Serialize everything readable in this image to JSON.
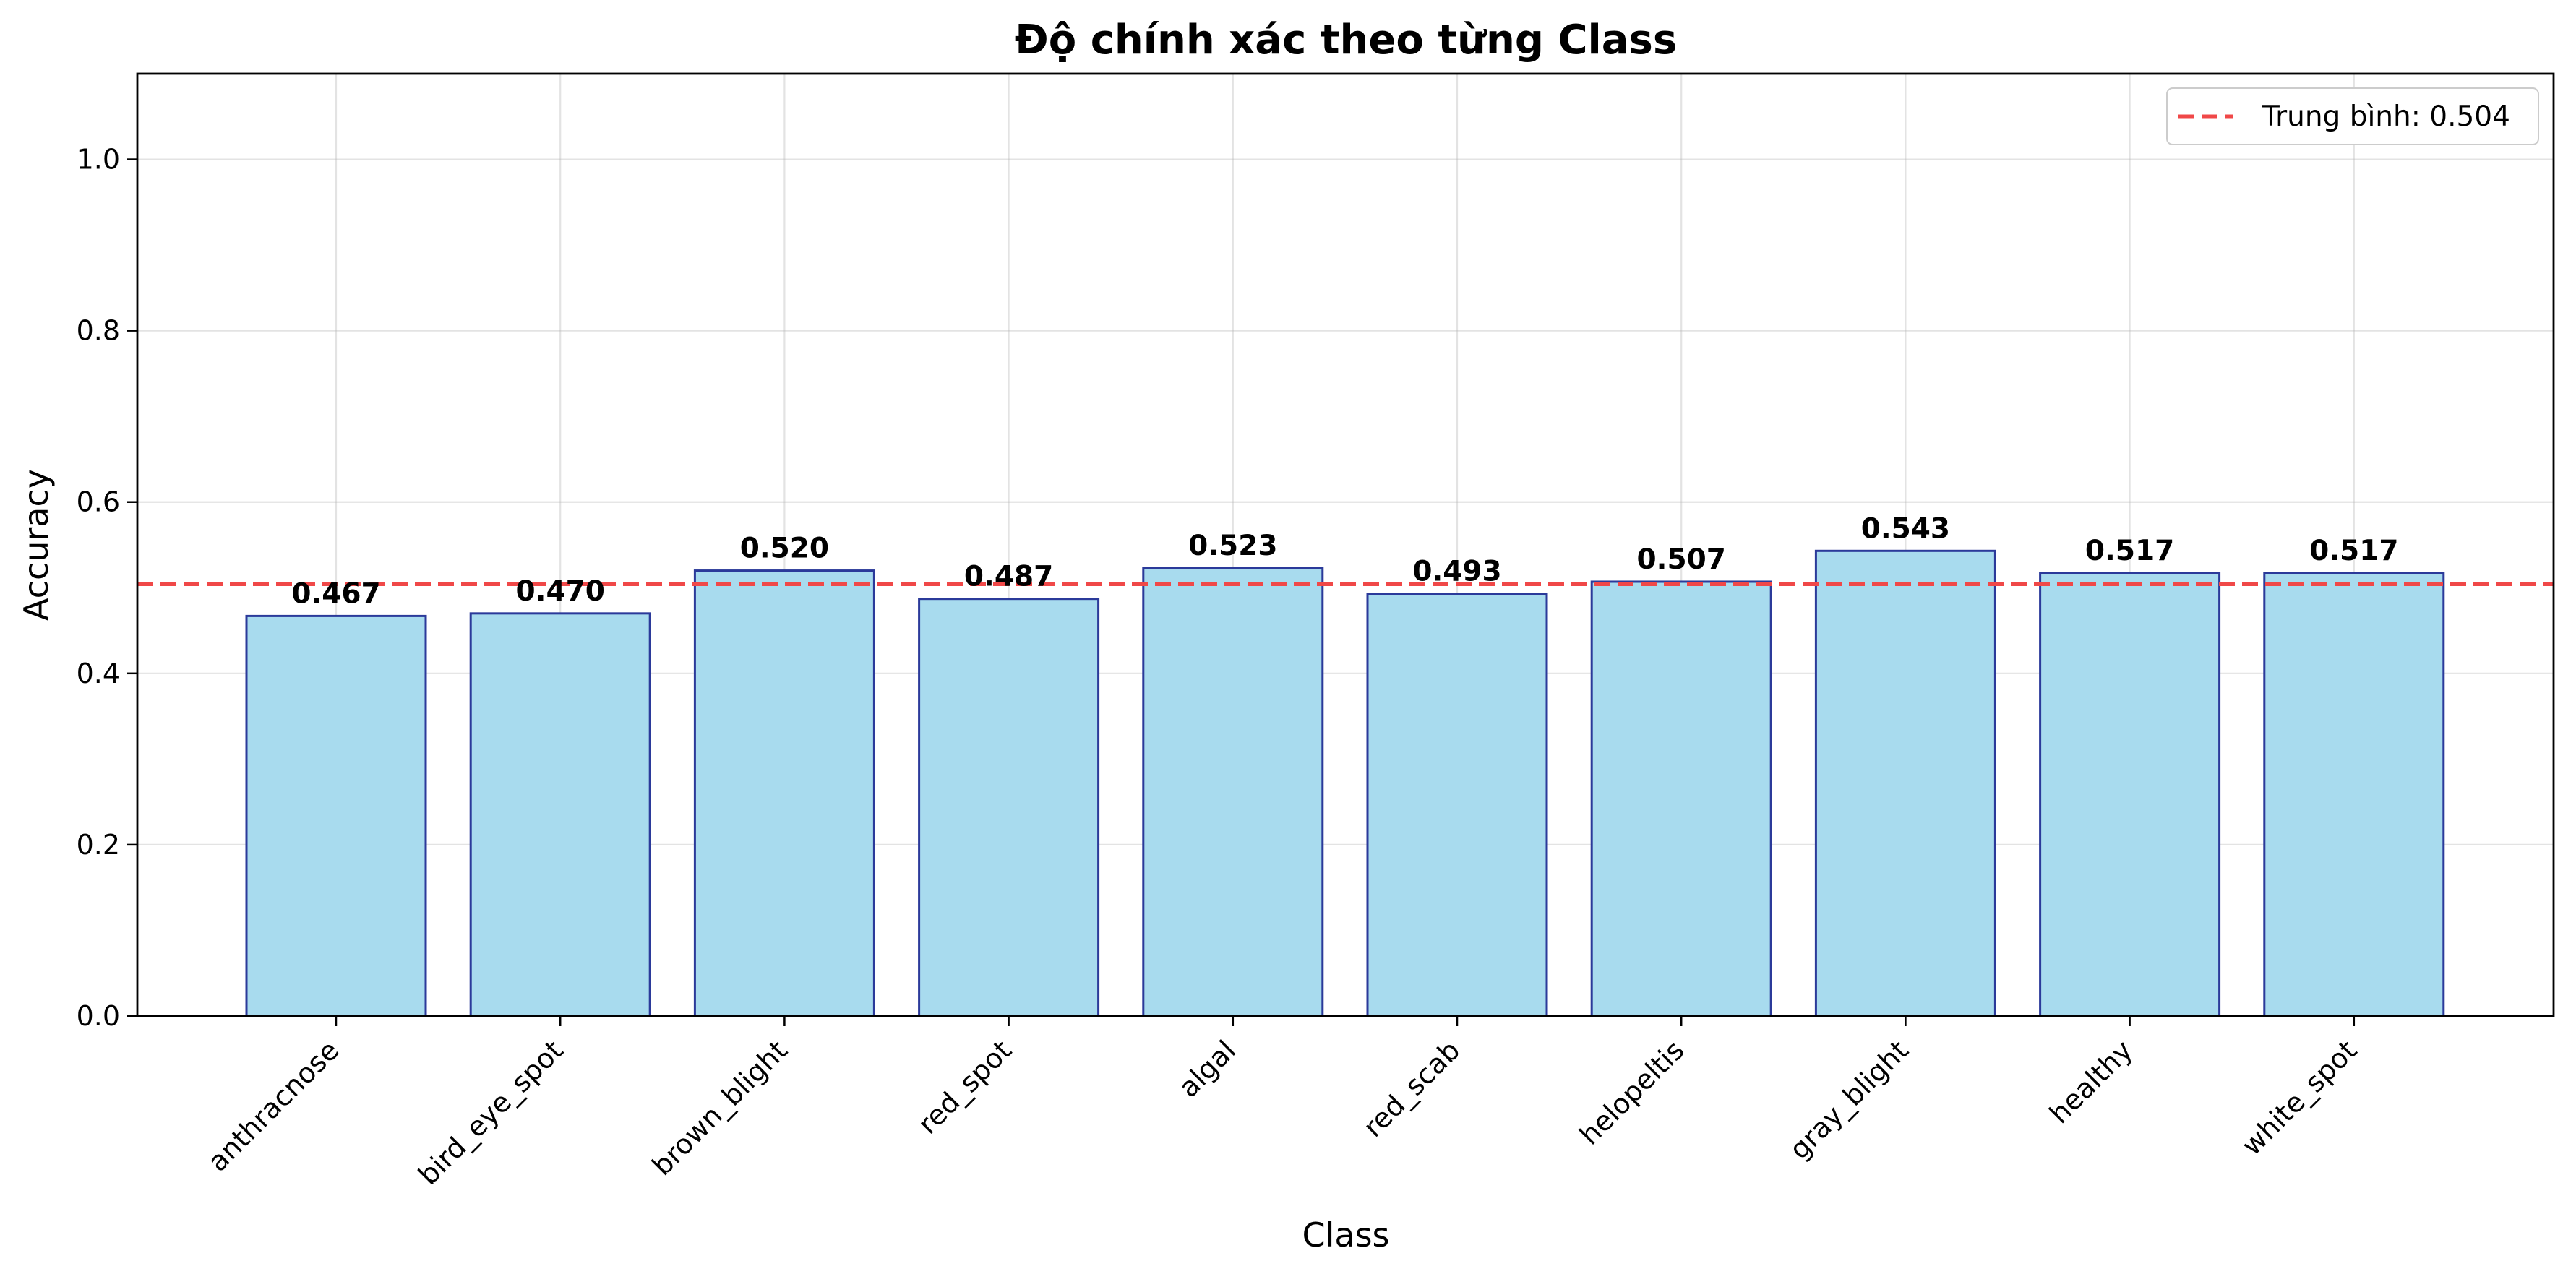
{
  "chart_data": {
    "type": "bar",
    "title": "Độ chính xác theo từng Class",
    "xlabel": "Class",
    "ylabel": "Accuracy",
    "categories": [
      "anthracnose",
      "bird_eye_spot",
      "brown_blight",
      "red_spot",
      "algal",
      "red_scab",
      "helopeltis",
      "gray_blight",
      "healthy",
      "white_spot"
    ],
    "values": [
      0.467,
      0.47,
      0.52,
      0.487,
      0.523,
      0.493,
      0.507,
      0.543,
      0.517,
      0.517
    ],
    "value_labels": [
      "0.467",
      "0.470",
      "0.520",
      "0.487",
      "0.523",
      "0.493",
      "0.507",
      "0.543",
      "0.517",
      "0.517"
    ],
    "ylim": [
      0,
      1.1
    ],
    "yticks": [
      "0.0",
      "0.2",
      "0.4",
      "0.6",
      "0.8",
      "1.0"
    ],
    "grid": true,
    "reference_line": {
      "value": 0.504,
      "label": "Trung bình: 0.504",
      "style": "dashed"
    },
    "legend_position": "top-right",
    "colors": {
      "bar_fill": "#a8dbee",
      "bar_edge": "#2b3a9a",
      "mean_line": "#f04848"
    }
  }
}
